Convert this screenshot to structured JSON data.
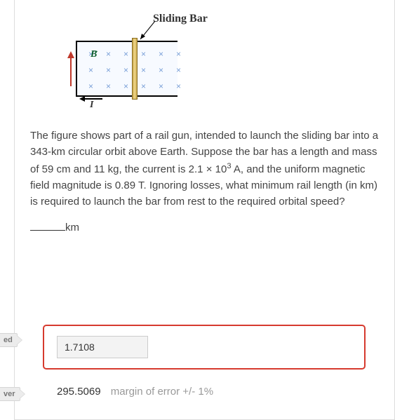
{
  "figure": {
    "sliding_bar_label": "Sliding Bar",
    "b_label": "B",
    "i_label": "I",
    "x_symbol": "×",
    "colors": {
      "rail_bg": "#f7faff",
      "x_color": "#7aa0d8",
      "bar_gradient_mid": "#f0d78a",
      "bar_gradient_edge": "#caa94e",
      "b_color": "#0a5c2c"
    }
  },
  "question": {
    "text_html": "The figure shows part of a rail gun, intended to launch the sliding bar into a 343-km circular orbit above Earth. Suppose the bar has a length and mass of 59 cm and 11 kg, the current is 2.1 × 10<sup>3</sup> A, and the uniform magnetic field magnitude is 0.89 T. Ignoring losses, what minimum rail length (in km) is required to launch the bar from rest to the required orbital speed?",
    "unit_label": "km"
  },
  "answer": {
    "submitted_value": "1.7108",
    "correct_value": "295.5069",
    "margin_text": "margin of error +/- 1%"
  },
  "tags": {
    "ed": "ed",
    "ver": "ver"
  },
  "style": {
    "error_border": "#d63a2e",
    "panel_border": "#ddd"
  }
}
